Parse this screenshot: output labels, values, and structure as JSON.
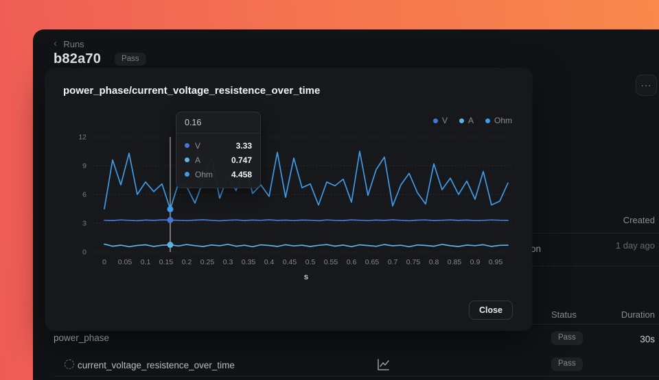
{
  "page": {
    "breadcrumb": "Runs",
    "run_title": "b82a70",
    "run_status": "Pass",
    "more_label": "···",
    "columns": {
      "created": "Created",
      "status": "Status",
      "duration": "Duration"
    },
    "created_value": "1 day ago",
    "clipped_fragment": "ion",
    "rows": [
      {
        "name": "power_phase",
        "status": "Pass",
        "duration": "30s"
      },
      {
        "name": "current_voltage_resistence_over_time",
        "status": "Pass"
      }
    ]
  },
  "modal": {
    "title": "power_phase/current_voltage_resistence_over_time",
    "close_label": "Close",
    "tooltip": {
      "header": "0.16",
      "rows": [
        {
          "label": "V",
          "value": "3.33"
        },
        {
          "label": "A",
          "value": "0.747"
        },
        {
          "label": "Ohm",
          "value": "4.458"
        }
      ]
    }
  },
  "chart_data": {
    "type": "line",
    "title": "power_phase/current_voltage_resistence_over_time",
    "xlabel": "s",
    "ylabel": "",
    "xlim": [
      0,
      1
    ],
    "ylim": [
      0,
      12
    ],
    "grid": "dotted-horizontal",
    "legend_position": "top-right",
    "crosshair_x": 0.16,
    "x_ticks": [
      "0",
      "0.05",
      "0.1",
      "0.15",
      "0.2",
      "0.25",
      "0.3",
      "0.35",
      "0.4",
      "0.45",
      "0.5",
      "0.55",
      "0.6",
      "0.65",
      "0.7",
      "0.75",
      "0.8",
      "0.85",
      "0.9",
      "0.95"
    ],
    "y_ticks": [
      "0",
      "3",
      "6",
      "9",
      "12"
    ],
    "x": [
      0,
      0.02,
      0.04,
      0.06,
      0.08,
      0.1,
      0.12,
      0.14,
      0.16,
      0.18,
      0.2,
      0.22,
      0.24,
      0.26,
      0.28,
      0.3,
      0.32,
      0.34,
      0.36,
      0.38,
      0.4,
      0.42,
      0.44,
      0.46,
      0.48,
      0.5,
      0.52,
      0.54,
      0.56,
      0.58,
      0.6,
      0.62,
      0.64,
      0.66,
      0.68,
      0.7,
      0.72,
      0.74,
      0.76,
      0.78,
      0.8,
      0.82,
      0.84,
      0.86,
      0.88,
      0.9,
      0.92,
      0.94,
      0.96,
      0.98
    ],
    "series": [
      {
        "name": "V",
        "color": "#4577d8",
        "values": [
          3.31,
          3.28,
          3.34,
          3.3,
          3.26,
          3.33,
          3.29,
          3.35,
          3.33,
          3.3,
          3.27,
          3.32,
          3.36,
          3.3,
          3.25,
          3.31,
          3.34,
          3.28,
          3.33,
          3.3,
          3.36,
          3.29,
          3.32,
          3.27,
          3.33,
          3.31,
          3.26,
          3.34,
          3.3,
          3.28,
          3.35,
          3.31,
          3.27,
          3.33,
          3.29,
          3.36,
          3.3,
          3.26,
          3.32,
          3.34,
          3.28,
          3.31,
          3.35,
          3.29,
          3.33,
          3.27,
          3.3,
          3.34,
          3.31,
          3.29
        ]
      },
      {
        "name": "A",
        "color": "#5fb3e4",
        "values": [
          0.82,
          0.6,
          0.71,
          0.55,
          0.68,
          0.75,
          0.58,
          0.7,
          0.747,
          0.62,
          0.78,
          0.66,
          0.57,
          0.73,
          0.65,
          0.8,
          0.6,
          0.7,
          0.55,
          0.74,
          0.68,
          0.58,
          0.76,
          0.63,
          0.71,
          0.57,
          0.69,
          0.77,
          0.61,
          0.72,
          0.56,
          0.74,
          0.67,
          0.59,
          0.78,
          0.64,
          0.7,
          0.55,
          0.73,
          0.68,
          0.6,
          0.79,
          0.65,
          0.57,
          0.72,
          0.66,
          0.76,
          0.58,
          0.69,
          0.71
        ]
      },
      {
        "name": "Ohm",
        "color": "#3f9ce8",
        "values": [
          4.5,
          9.6,
          7.0,
          10.3,
          6.0,
          7.3,
          6.3,
          7.1,
          4.458,
          7.2,
          6.8,
          5.1,
          7.4,
          9.9,
          5.6,
          7.9,
          6.4,
          9.4,
          6.1,
          7.0,
          5.8,
          10.4,
          5.7,
          9.8,
          6.7,
          7.1,
          4.9,
          7.3,
          6.9,
          7.6,
          5.2,
          10.5,
          5.9,
          8.6,
          9.9,
          4.8,
          7.0,
          8.2,
          6.2,
          5.0,
          9.2,
          6.5,
          7.7,
          6.0,
          7.4,
          5.5,
          8.4,
          4.9,
          5.3,
          7.2
        ]
      }
    ]
  }
}
